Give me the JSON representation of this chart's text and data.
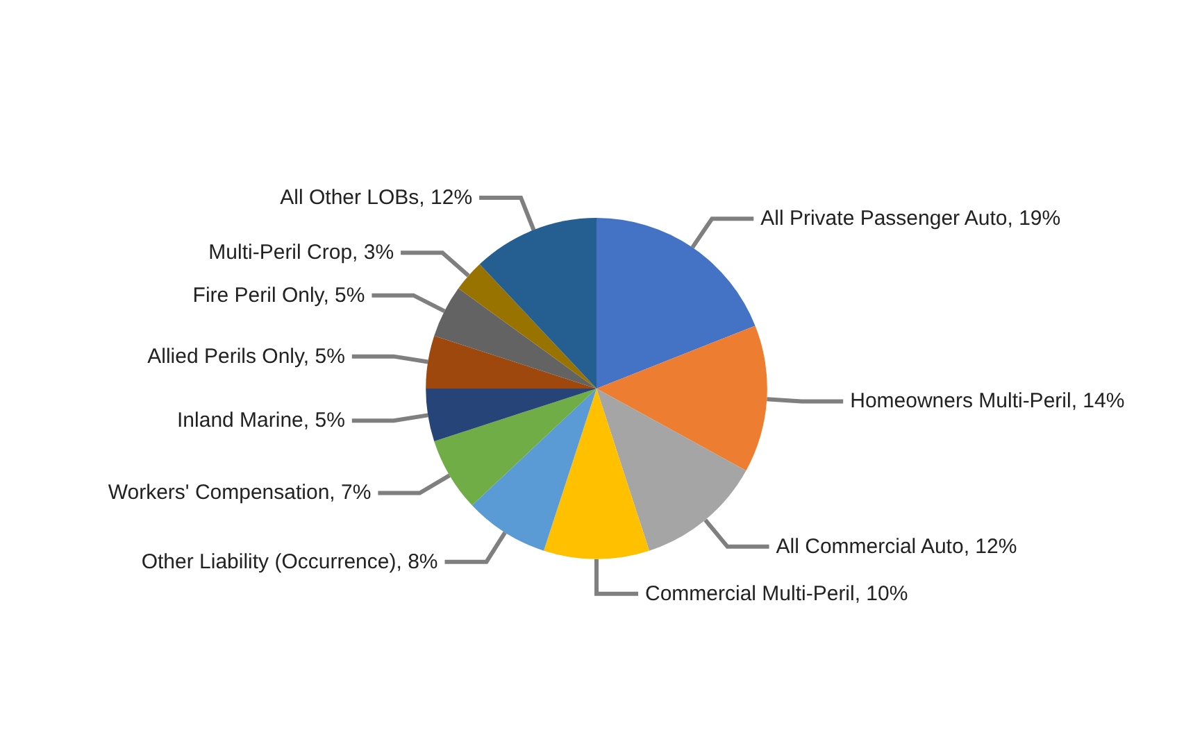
{
  "chart_data": {
    "type": "pie",
    "categories": [
      "All Private Passenger Auto",
      "Homeowners Multi-Peril",
      "All Commercial Auto",
      "Commercial Multi-Peril",
      "Other Liability (Occurrence)",
      "Workers' Compensation",
      "Inland Marine",
      "Allied Perils Only",
      "Fire Peril Only",
      "Multi-Peril Crop",
      "All Other LOBs"
    ],
    "values": [
      19,
      14,
      12,
      10,
      8,
      7,
      5,
      5,
      5,
      3,
      12
    ],
    "value_labels": [
      "19%",
      "14%",
      "12%",
      "10%",
      "8%",
      "7%",
      "5%",
      "5%",
      "5%",
      "3%",
      "12%"
    ],
    "colors": [
      "#4472c4",
      "#ed7d31",
      "#a5a5a5",
      "#ffc000",
      "#5b9bd5",
      "#70ad47",
      "#264478",
      "#9e480e",
      "#636363",
      "#997300",
      "#255e91"
    ],
    "legend": false
  }
}
